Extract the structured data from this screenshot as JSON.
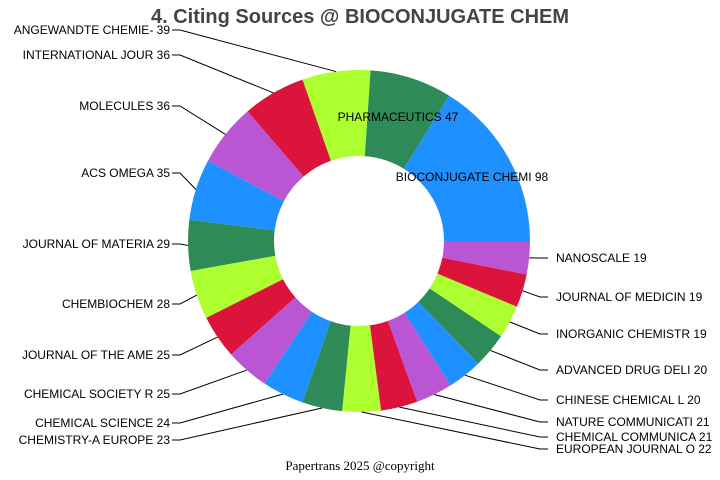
{
  "chart_data": {
    "type": "pie",
    "donut": true,
    "title": "4. Citing Sources @ BIOCONJUGATE CHEM",
    "categories": [
      "BIOCONJUGATE CHEMI",
      "PHARMACEUTICS",
      "ANGEWANDTE CHEMIE-",
      "INTERNATIONAL JOUR",
      "MOLECULES",
      "ACS OMEGA",
      "JOURNAL OF MATERIA",
      "CHEMBIOCHEM",
      "JOURNAL OF THE AME",
      "CHEMICAL SOCIETY R",
      "CHEMICAL SCIENCE",
      "CHEMISTRY-A EUROPE",
      "EUROPEAN JOURNAL O",
      "CHEMICAL COMMUNICA",
      "NATURE COMMUNICATI",
      "CHINESE CHEMICAL L",
      "ADVANCED DRUG DELI",
      "INORGANIC CHEMISTR",
      "JOURNAL OF MEDICIN",
      "NANOSCALE"
    ],
    "values": [
      98,
      47,
      39,
      36,
      36,
      35,
      29,
      28,
      25,
      25,
      24,
      23,
      22,
      21,
      21,
      20,
      20,
      19,
      19,
      19
    ],
    "labels": [
      "BIOCONJUGATE CHEMI 98",
      "PHARMACEUTICS 47",
      "ANGEWANDTE CHEMIE- 39",
      "INTERNATIONAL JOUR 36",
      "MOLECULES 36",
      "ACS OMEGA 35",
      "JOURNAL OF MATERIA 29",
      "CHEMBIOCHEM 28",
      "JOURNAL OF THE AME 25",
      "CHEMICAL SOCIETY R 25",
      "CHEMICAL SCIENCE 24",
      "CHEMISTRY-A EUROPE 23",
      "EUROPEAN JOURNAL O 22",
      "CHEMICAL COMMUNICA 21",
      "NATURE COMMUNICATI 21",
      "CHINESE CHEMICAL L 20",
      "ADVANCED DRUG DELI 20",
      "INORGANIC CHEMISTR 19",
      "JOURNAL OF MEDICIN 19",
      "NANOSCALE 19"
    ],
    "colors": [
      "#1e90ff",
      "#2e8b57",
      "#adff2f",
      "#dc143c",
      "#ba55d3"
    ],
    "direction": "counterclockwise",
    "start": "east"
  },
  "footer": "Papertrans 2025 @copyright"
}
